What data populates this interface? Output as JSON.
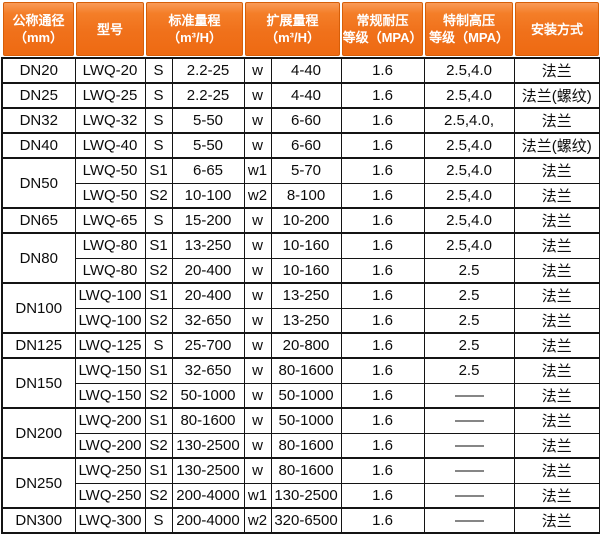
{
  "accent_color": "#f0711b",
  "header_border_color": "#d65e08",
  "grid_color": "#141414",
  "table": {
    "header": {
      "diameter": {
        "line1": "公称通径",
        "line2": "（mm）"
      },
      "model": {
        "line1": "型号",
        "line2": ""
      },
      "standard_range": {
        "line1": "标准量程",
        "line2": "（m³/H）"
      },
      "extended_range": {
        "line1": "扩展量程",
        "line2": "（m³/H）"
      },
      "pressure": {
        "line1": "常规耐压",
        "line2": "等级（MPA）"
      },
      "high_pressure": {
        "line1": "特制高压",
        "line2": "等级（MPA）"
      },
      "install": {
        "line1": "安装方式",
        "line2": ""
      }
    },
    "rows": [
      {
        "dn": "DN20",
        "rowspan": 1,
        "cells": [
          "LWQ-20",
          "S",
          "2.2-25",
          "w",
          "4-40",
          "1.6",
          "2.5,4.0",
          "法兰"
        ]
      },
      {
        "dn": "DN25",
        "rowspan": 1,
        "cells": [
          "LWQ-25",
          "S",
          "2.2-25",
          "w",
          "4-40",
          "1.6",
          "2.5,4.0",
          "法兰(螺纹)"
        ]
      },
      {
        "dn": "DN32",
        "rowspan": 1,
        "cells": [
          "LWQ-32",
          "S",
          "5-50",
          "w",
          "6-60",
          "1.6",
          "2.5,4.0,",
          "法兰"
        ]
      },
      {
        "dn": "DN40",
        "rowspan": 1,
        "cells": [
          "LWQ-40",
          "S",
          "5-50",
          "w",
          "6-60",
          "1.6",
          "2.5,4.0",
          "法兰(螺纹)"
        ]
      },
      {
        "dn": "DN50",
        "rowspan": 2,
        "cells": [
          "LWQ-50",
          "S1",
          "6-65",
          "w1",
          "5-70",
          "1.6",
          "2.5,4.0",
          "法兰"
        ]
      },
      {
        "dn": null,
        "cells": [
          "LWQ-50",
          "S2",
          "10-100",
          "w2",
          "8-100",
          "1.6",
          "2.5,4.0",
          "法兰"
        ]
      },
      {
        "dn": "DN65",
        "rowspan": 1,
        "cells": [
          "LWQ-65",
          "S",
          "15-200",
          "w",
          "10-200",
          "1.6",
          "2.5,4.0",
          "法兰"
        ]
      },
      {
        "dn": "DN80",
        "rowspan": 2,
        "cells": [
          "LWQ-80",
          "S1",
          "13-250",
          "w",
          "10-160",
          "1.6",
          "2.5,4.0",
          "法兰"
        ]
      },
      {
        "dn": null,
        "cells": [
          "LWQ-80",
          "S2",
          "20-400",
          "w",
          "10-160",
          "1.6",
          "2.5",
          "法兰"
        ]
      },
      {
        "dn": "DN100",
        "rowspan": 2,
        "cells": [
          "LWQ-100",
          "S1",
          "20-400",
          "w",
          "13-250",
          "1.6",
          "2.5",
          "法兰"
        ]
      },
      {
        "dn": null,
        "cells": [
          "LWQ-100",
          "S2",
          "32-650",
          "w",
          "13-250",
          "1.6",
          "2.5",
          "法兰"
        ]
      },
      {
        "dn": "DN125",
        "rowspan": 1,
        "cells": [
          "LWQ-125",
          "S",
          "25-700",
          "w",
          "20-800",
          "1.6",
          "2.5",
          "法兰"
        ]
      },
      {
        "dn": "DN150",
        "rowspan": 2,
        "cells": [
          "LWQ-150",
          "S1",
          "32-650",
          "w",
          "80-1600",
          "1.6",
          "2.5",
          "法兰"
        ]
      },
      {
        "dn": null,
        "cells": [
          "LWQ-150",
          "S2",
          "50-1000",
          "w",
          "50-1000",
          "1.6",
          "——",
          "法兰"
        ]
      },
      {
        "dn": "DN200",
        "rowspan": 2,
        "cells": [
          "LWQ-200",
          "S1",
          "80-1600",
          "w",
          "50-1000",
          "1.6",
          "——",
          "法兰"
        ]
      },
      {
        "dn": null,
        "cells": [
          "LWQ-200",
          "S2",
          "130-2500",
          "w",
          "80-1600",
          "1.6",
          "——",
          "法兰"
        ]
      },
      {
        "dn": "DN250",
        "rowspan": 2,
        "cells": [
          "LWQ-250",
          "S1",
          "130-2500",
          "w",
          "80-1600",
          "1.6",
          "——",
          "法兰"
        ]
      },
      {
        "dn": null,
        "cells": [
          "LWQ-250",
          "S2",
          "200-4000",
          "w1",
          "130-2500",
          "1.6",
          "——",
          "法兰"
        ]
      },
      {
        "dn": "DN300",
        "rowspan": 1,
        "cells": [
          "LWQ-300",
          "S",
          "200-4000",
          "w2",
          "320-6500",
          "1.6",
          "——",
          "法兰"
        ]
      }
    ]
  }
}
